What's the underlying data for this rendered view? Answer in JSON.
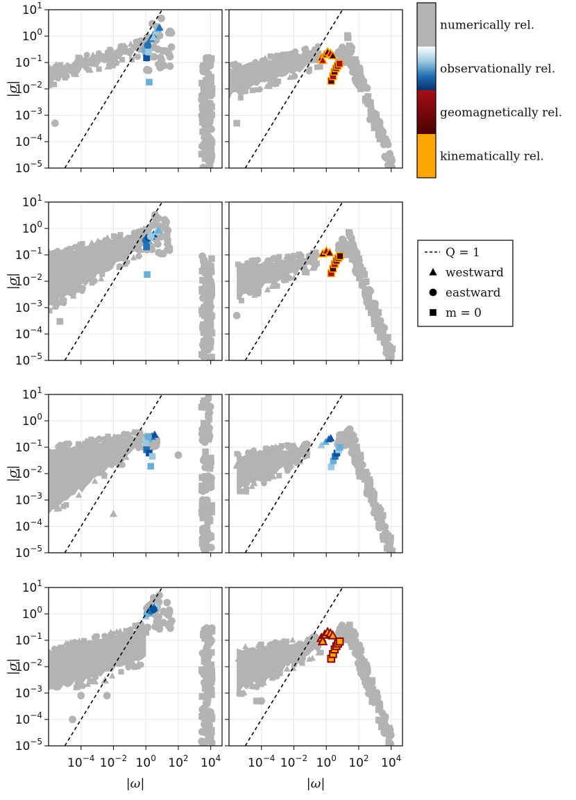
{
  "chart_data": {
    "type": "scatter",
    "layout": {
      "rows": 4,
      "cols": 2
    },
    "x_scale": "log",
    "y_scale": "log",
    "xlim": [
      1e-06,
      50000
    ],
    "ylim": [
      1e-05,
      10
    ],
    "x_ticks": [
      {
        "base": "10",
        "exp": "−4",
        "value": 0.0001
      },
      {
        "base": "10",
        "exp": "−2",
        "value": 0.01
      },
      {
        "base": "10",
        "exp": "0",
        "value": 1
      },
      {
        "base": "10",
        "exp": "2",
        "value": 100
      },
      {
        "base": "10",
        "exp": "4",
        "value": 10000
      }
    ],
    "y_ticks": [
      {
        "base": "10",
        "exp": "1",
        "value": 10
      },
      {
        "base": "10",
        "exp": "0",
        "value": 1
      },
      {
        "base": "10",
        "exp": "−1",
        "value": 0.1
      },
      {
        "base": "10",
        "exp": "−2",
        "value": 0.01
      },
      {
        "base": "10",
        "exp": "−3",
        "value": 0.001
      },
      {
        "base": "10",
        "exp": "−4",
        "value": 0.0001
      },
      {
        "base": "10",
        "exp": "−5",
        "value": 1e-05
      }
    ],
    "xlabel": "|ω|",
    "ylabel": "|σ|",
    "grid": true,
    "reference_line": {
      "label": "Q = 1",
      "relation": "σ = ω",
      "style": "dashed"
    },
    "colorbar": {
      "entries": [
        {
          "label": "numerically rel.",
          "colors": [
            "#b3b3b3"
          ]
        },
        {
          "label": "observationally rel.",
          "colors": [
            "#ffffff",
            "#9ecae1",
            "#2171b5",
            "#08306b"
          ]
        },
        {
          "label": "geomagnetically rel.",
          "colors": [
            "#a50f15",
            "#4a0000"
          ]
        },
        {
          "label": "kinematically rel.",
          "colors": [
            "#ffa500"
          ]
        }
      ]
    },
    "legend": {
      "placement": "right",
      "entries": [
        {
          "marker": "dashed-line",
          "label": "Q = 1"
        },
        {
          "marker": "triangle",
          "label": "westward"
        },
        {
          "marker": "circle",
          "label": "eastward"
        },
        {
          "marker": "square",
          "label": "m = 0"
        }
      ]
    },
    "panels": [
      {
        "row": 1,
        "col": 1,
        "highlight": "observationally rel.",
        "gray_cloud": {
          "x": [
            1e-06,
            1
          ],
          "y_top": [
            0.06,
            0.6
          ],
          "y_bottom": [
            0.02,
            0.3
          ]
        },
        "gray_peak": {
          "x": [
            1,
            40
          ],
          "y": [
            0.05,
            8
          ]
        },
        "gray_tail": {
          "x": [
            300,
            12000
          ],
          "y": [
            1e-05,
            0.15
          ]
        },
        "highlight_points": [
          {
            "x": 1.0,
            "y": 0.3,
            "m": "triangle"
          },
          {
            "x": 1.4,
            "y": 0.5,
            "m": "triangle"
          },
          {
            "x": 2.0,
            "y": 0.8,
            "m": "triangle"
          },
          {
            "x": 2.8,
            "y": 1.1,
            "m": "triangle"
          },
          {
            "x": 4.0,
            "y": 1.5,
            "m": "triangle"
          },
          {
            "x": 5.5,
            "y": 1.9,
            "m": "triangle"
          },
          {
            "x": 7.0,
            "y": 2.1,
            "m": "triangle"
          },
          {
            "x": 1.2,
            "y": 0.4,
            "m": "triangle"
          },
          {
            "x": 3.0,
            "y": 0.9,
            "m": "triangle"
          },
          {
            "x": 0.9,
            "y": 0.3,
            "m": "circle"
          },
          {
            "x": 1.3,
            "y": 0.45,
            "m": "circle"
          },
          {
            "x": 1.1,
            "y": 0.15,
            "m": "square"
          },
          {
            "x": 1.5,
            "y": 0.25,
            "m": "square"
          },
          {
            "x": 1.6,
            "y": 0.018,
            "m": "square"
          }
        ],
        "scatter_points": [
          {
            "x": 2.5e-06,
            "y": 0.0005,
            "m": "circle"
          },
          {
            "x": 3e-06,
            "y": 0.05,
            "m": "circle"
          }
        ]
      },
      {
        "row": 1,
        "col": 2,
        "highlight": "geomagnetically rel.",
        "gray_cloud": {
          "x": [
            1e-06,
            0.5
          ],
          "y_top": [
            0.06,
            0.35
          ],
          "y_bottom": [
            0.005,
            0.1
          ]
        },
        "gray_peak": {
          "x": [
            5,
            20
          ],
          "y": [
            0.1,
            0.4
          ]
        },
        "gray_tail": {
          "x": [
            20,
            12000
          ],
          "y": [
            1e-05,
            0.4
          ]
        },
        "highlight_points": [
          {
            "x": 0.5,
            "y": 0.15,
            "m": "triangle"
          },
          {
            "x": 0.8,
            "y": 0.2,
            "m": "triangle"
          },
          {
            "x": 1.2,
            "y": 0.25,
            "m": "triangle"
          },
          {
            "x": 1.8,
            "y": 0.22,
            "m": "triangle"
          },
          {
            "x": 2.5,
            "y": 0.18,
            "m": "triangle"
          },
          {
            "x": 0.6,
            "y": 0.12,
            "m": "triangle"
          },
          {
            "x": 2.0,
            "y": 0.02,
            "m": "square"
          },
          {
            "x": 2.6,
            "y": 0.03,
            "m": "square"
          },
          {
            "x": 3.2,
            "y": 0.045,
            "m": "square"
          },
          {
            "x": 4.0,
            "y": 0.06,
            "m": "square"
          },
          {
            "x": 5.0,
            "y": 0.075,
            "m": "square"
          },
          {
            "x": 6.5,
            "y": 0.09,
            "m": "square"
          }
        ],
        "scatter_points": [
          {
            "x": 3e-06,
            "y": 0.0005,
            "m": "square"
          }
        ]
      },
      {
        "row": 2,
        "col": 1,
        "highlight": "observationally rel.",
        "gray_cloud": {
          "x": [
            1e-06,
            1
          ],
          "y_top": [
            0.1,
            0.8
          ],
          "y_bottom": [
            0.001,
            0.2
          ]
        },
        "gray_peak": {
          "x": [
            1,
            40
          ],
          "y": [
            0.1,
            5
          ]
        },
        "gray_tail": {
          "x": [
            300,
            12000
          ],
          "y": [
            1e-05,
            0.1
          ]
        },
        "highlight_points": [
          {
            "x": 1.0,
            "y": 0.2,
            "m": "triangle"
          },
          {
            "x": 1.5,
            "y": 0.35,
            "m": "triangle"
          },
          {
            "x": 2.2,
            "y": 0.5,
            "m": "triangle"
          },
          {
            "x": 3.0,
            "y": 0.6,
            "m": "triangle"
          },
          {
            "x": 4.5,
            "y": 0.75,
            "m": "triangle"
          },
          {
            "x": 6.0,
            "y": 0.85,
            "m": "triangle"
          },
          {
            "x": 1.0,
            "y": 0.35,
            "m": "circle"
          },
          {
            "x": 1.4,
            "y": 0.45,
            "m": "circle"
          },
          {
            "x": 2.0,
            "y": 0.5,
            "m": "circle"
          },
          {
            "x": 1.2,
            "y": 0.018,
            "m": "square"
          },
          {
            "x": 1.1,
            "y": 0.2,
            "m": "square"
          }
        ],
        "scatter_points": [
          {
            "x": 5e-06,
            "y": 0.0003,
            "m": "square"
          },
          {
            "x": 4e-06,
            "y": 0.08,
            "m": "triangle"
          },
          {
            "x": 3e-06,
            "y": 0.02,
            "m": "triangle"
          }
        ]
      },
      {
        "row": 2,
        "col": 2,
        "highlight": "geomagnetically rel.",
        "gray_cloud": {
          "x": [
            3e-06,
            0.3
          ],
          "y_top": [
            0.04,
            0.1
          ],
          "y_bottom": [
            0.002,
            0.05
          ]
        },
        "gray_peak": {
          "x": [
            5,
            20
          ],
          "y": [
            0.1,
            0.4
          ]
        },
        "gray_tail": {
          "x": [
            20,
            12000
          ],
          "y": [
            1e-05,
            0.4
          ]
        },
        "highlight_points": [
          {
            "x": 0.6,
            "y": 0.11,
            "m": "triangle"
          },
          {
            "x": 1.0,
            "y": 0.14,
            "m": "triangle"
          },
          {
            "x": 1.6,
            "y": 0.12,
            "m": "triangle"
          },
          {
            "x": 2.0,
            "y": 0.02,
            "m": "square"
          },
          {
            "x": 2.6,
            "y": 0.03,
            "m": "square"
          },
          {
            "x": 3.3,
            "y": 0.045,
            "m": "square"
          },
          {
            "x": 4.2,
            "y": 0.06,
            "m": "square"
          },
          {
            "x": 5.4,
            "y": 0.075,
            "m": "square"
          },
          {
            "x": 7.0,
            "y": 0.09,
            "m": "square"
          }
        ],
        "scatter_points": [
          {
            "x": 3e-06,
            "y": 0.0005,
            "m": "circle"
          }
        ]
      },
      {
        "row": 3,
        "col": 1,
        "highlight": "observationally rel.",
        "gray_cloud": {
          "x": [
            1e-06,
            1
          ],
          "y_top": [
            0.08,
            0.35
          ],
          "y_bottom": [
            0.0003,
            0.15
          ]
        },
        "gray_peak": {
          "x": [
            1,
            5
          ],
          "y": [
            0.1,
            0.3
          ]
        },
        "gray_tail": {
          "x": [
            300,
            12000
          ],
          "y": [
            1e-05,
            8
          ]
        },
        "highlight_points": [
          {
            "x": 1.0,
            "y": 0.15,
            "m": "triangle"
          },
          {
            "x": 1.6,
            "y": 0.2,
            "m": "triangle"
          },
          {
            "x": 2.4,
            "y": 0.25,
            "m": "triangle"
          },
          {
            "x": 3.5,
            "y": 0.3,
            "m": "triangle"
          },
          {
            "x": 1.0,
            "y": 0.2,
            "m": "circle"
          },
          {
            "x": 1.4,
            "y": 0.25,
            "m": "circle"
          },
          {
            "x": 1.1,
            "y": 0.08,
            "m": "square"
          },
          {
            "x": 1.6,
            "y": 0.06,
            "m": "square"
          },
          {
            "x": 2.5,
            "y": 0.045,
            "m": "square"
          },
          {
            "x": 2.0,
            "y": 0.019,
            "m": "square"
          }
        ],
        "scatter_points": [
          {
            "x": 3e-06,
            "y": 0.002,
            "m": "circle"
          },
          {
            "x": 4e-06,
            "y": 0.004,
            "m": "circle"
          },
          {
            "x": 0.01,
            "y": 0.0003,
            "m": "triangle"
          },
          {
            "x": 100,
            "y": 0.05,
            "m": "circle"
          }
        ]
      },
      {
        "row": 3,
        "col": 2,
        "highlight": "observationally rel.",
        "gray_cloud": {
          "x": [
            3e-06,
            0.1
          ],
          "y_top": [
            0.05,
            0.12
          ],
          "y_bottom": [
            0.002,
            0.05
          ]
        },
        "gray_peak": {
          "x": [
            5,
            20
          ],
          "y": [
            0.1,
            0.4
          ]
        },
        "gray_tail": {
          "x": [
            20,
            12000
          ],
          "y": [
            1e-05,
            0.4
          ]
        },
        "highlight_points": [
          {
            "x": 0.5,
            "y": 0.12,
            "m": "triangle"
          },
          {
            "x": 0.9,
            "y": 0.16,
            "m": "triangle"
          },
          {
            "x": 1.4,
            "y": 0.2,
            "m": "triangle"
          },
          {
            "x": 1.9,
            "y": 0.22,
            "m": "triangle"
          },
          {
            "x": 2.0,
            "y": 0.018,
            "m": "square"
          },
          {
            "x": 2.7,
            "y": 0.03,
            "m": "square"
          },
          {
            "x": 3.5,
            "y": 0.045,
            "m": "square"
          },
          {
            "x": 4.5,
            "y": 0.06,
            "m": "square"
          },
          {
            "x": 5.8,
            "y": 0.08,
            "m": "square"
          },
          {
            "x": 7.0,
            "y": 0.1,
            "m": "square"
          }
        ],
        "scatter_points": [
          {
            "x": 3e-06,
            "y": 0.02,
            "m": "triangle"
          },
          {
            "x": 4e-06,
            "y": 0.025,
            "m": "triangle"
          }
        ]
      },
      {
        "row": 4,
        "col": 1,
        "highlight": "observationally rel.",
        "gray_cloud": {
          "x": [
            1e-06,
            1
          ],
          "y_top": [
            0.04,
            0.35
          ],
          "y_bottom": [
            0.001,
            0.02
          ]
        },
        "gray_peak": {
          "x": [
            1,
            40
          ],
          "y": [
            0.2,
            8
          ]
        },
        "gray_tail": {
          "x": [
            300,
            12000
          ],
          "y": [
            1e-05,
            0.3
          ]
        },
        "highlight_points": [
          {
            "x": 1.0,
            "y": 0.8,
            "m": "triangle"
          },
          {
            "x": 1.5,
            "y": 1.1,
            "m": "triangle"
          },
          {
            "x": 2.2,
            "y": 1.4,
            "m": "triangle"
          },
          {
            "x": 3.2,
            "y": 1.7,
            "m": "triangle"
          },
          {
            "x": 4.5,
            "y": 2.0,
            "m": "triangle"
          },
          {
            "x": 1.2,
            "y": 1.0,
            "m": "circle"
          },
          {
            "x": 2.0,
            "y": 1.3,
            "m": "circle"
          },
          {
            "x": 3.0,
            "y": 1.5,
            "m": "circle"
          }
        ],
        "scatter_points": [
          {
            "x": 3e-05,
            "y": 0.0001,
            "m": "circle"
          },
          {
            "x": 0.0001,
            "y": 0.0008,
            "m": "circle"
          },
          {
            "x": 0.004,
            "y": 0.0008,
            "m": "circle"
          },
          {
            "x": 0.003,
            "y": 0.003,
            "m": "triangle"
          },
          {
            "x": 3e-06,
            "y": 0.02,
            "m": "triangle"
          },
          {
            "x": 1.0,
            "y": 0.2,
            "m": "square"
          },
          {
            "x": 0.5,
            "y": 0.3,
            "m": "square"
          }
        ]
      },
      {
        "row": 4,
        "col": 2,
        "highlight": "kinematically rel.",
        "gray_cloud": {
          "x": [
            3e-06,
            0.5
          ],
          "y_top": [
            0.04,
            0.12
          ],
          "y_bottom": [
            0.001,
            0.05
          ]
        },
        "gray_peak": {
          "x": [
            5,
            20
          ],
          "y": [
            0.1,
            0.4
          ]
        },
        "gray_tail": {
          "x": [
            20,
            12000
          ],
          "y": [
            1e-05,
            0.4
          ]
        },
        "highlight_points": [
          {
            "x": 0.5,
            "y": 0.12,
            "m": "triangle"
          },
          {
            "x": 0.8,
            "y": 0.16,
            "m": "triangle"
          },
          {
            "x": 1.2,
            "y": 0.2,
            "m": "triangle"
          },
          {
            "x": 1.8,
            "y": 0.18,
            "m": "triangle"
          },
          {
            "x": 2.5,
            "y": 0.15,
            "m": "triangle"
          },
          {
            "x": 0.6,
            "y": 0.09,
            "m": "triangle"
          },
          {
            "x": 2.0,
            "y": 0.02,
            "m": "square"
          },
          {
            "x": 2.6,
            "y": 0.03,
            "m": "square"
          },
          {
            "x": 3.3,
            "y": 0.045,
            "m": "square"
          },
          {
            "x": 4.2,
            "y": 0.06,
            "m": "square"
          },
          {
            "x": 5.3,
            "y": 0.075,
            "m": "square"
          },
          {
            "x": 6.8,
            "y": 0.09,
            "m": "square"
          }
        ],
        "scatter_points": [
          {
            "x": 5e-05,
            "y": 0.0005,
            "m": "square"
          },
          {
            "x": 0.0001,
            "y": 0.0005,
            "m": "circle"
          },
          {
            "x": 4e-06,
            "y": 0.02,
            "m": "triangle"
          }
        ]
      }
    ]
  }
}
